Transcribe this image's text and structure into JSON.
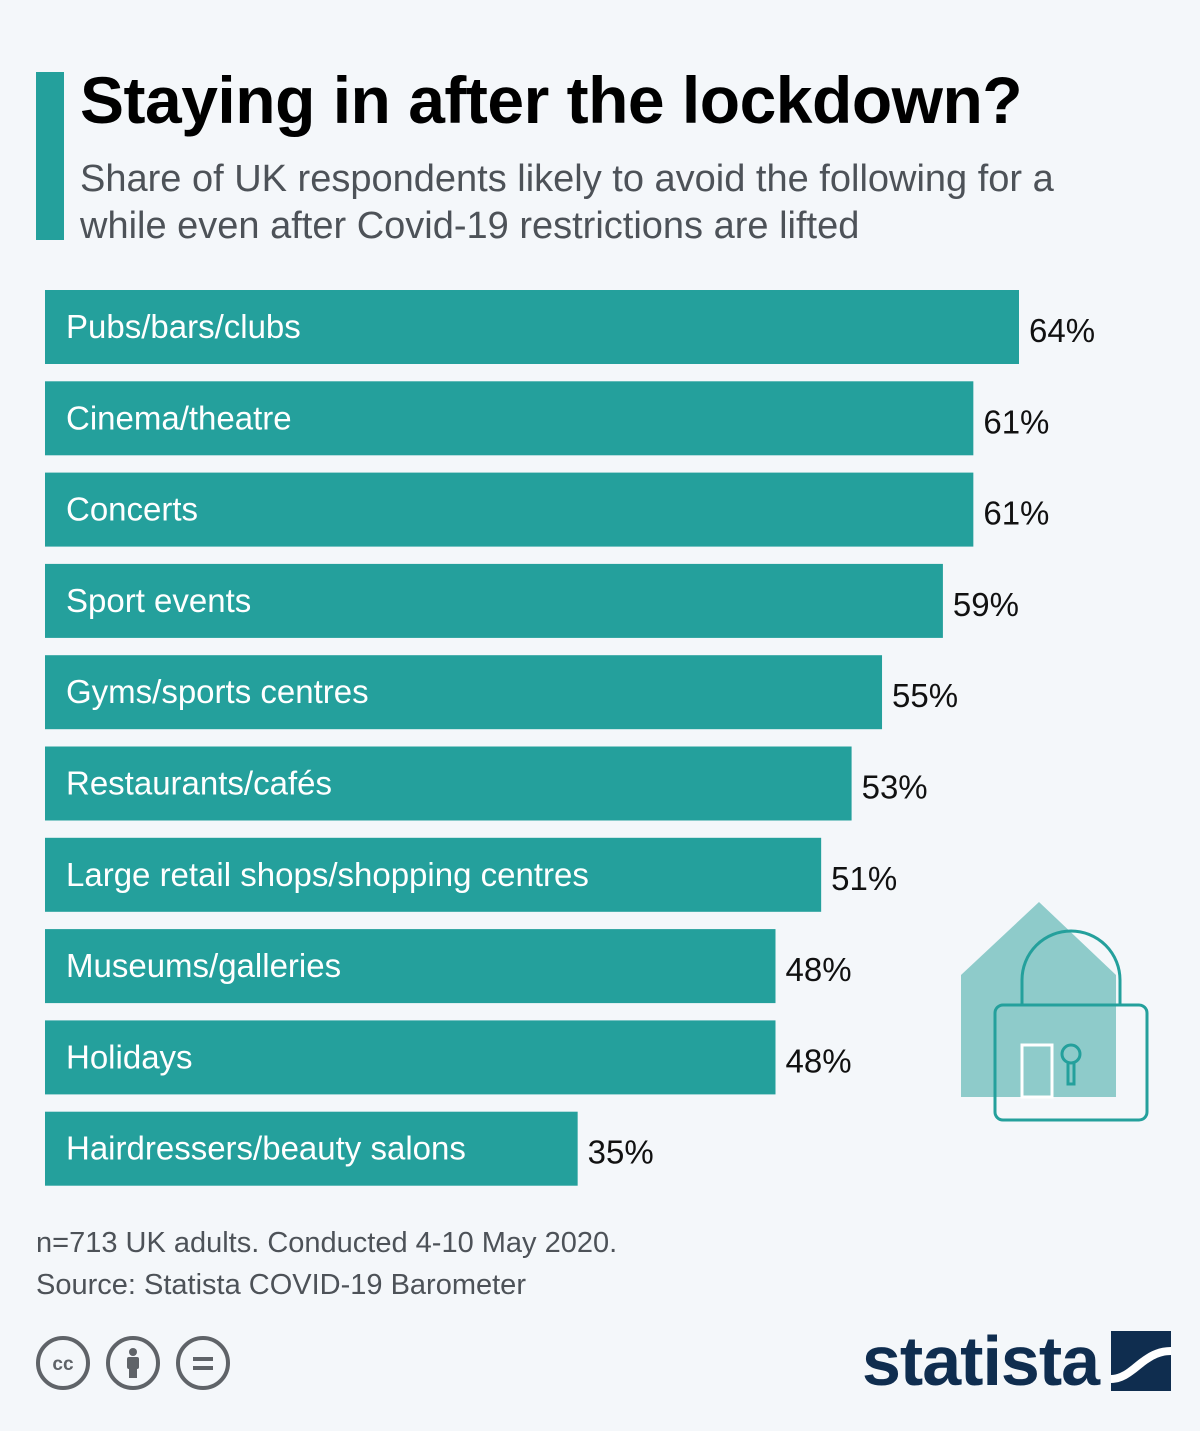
{
  "title": "Staying in after the lockdown?",
  "subtitle": "Share of UK respondents likely to avoid the following for a while even after Covid-19 restrictions are lifted",
  "colors": {
    "bar": "#24a09c",
    "accent": "#24a09c",
    "brand": "#0f2d4f",
    "background": "#f4f7fa"
  },
  "chart_data": {
    "type": "bar",
    "orientation": "horizontal",
    "categories": [
      "Pubs/bars/clubs",
      "Cinema/theatre",
      "Concerts",
      "Sport events",
      "Gyms/sports centres",
      "Restaurants/cafés",
      "Large retail shops/shopping centres",
      "Museums/galleries",
      "Holidays",
      "Hairdressers/beauty salons"
    ],
    "values": [
      64,
      61,
      61,
      59,
      55,
      53,
      51,
      48,
      48,
      35
    ],
    "value_labels": [
      "64%",
      "61%",
      "61%",
      "59%",
      "55%",
      "53%",
      "51%",
      "48%",
      "48%",
      "35%"
    ],
    "unit": "%",
    "grid": false
  },
  "footnote": {
    "sample": "n=713 UK adults. Conducted 4-10 May 2020.",
    "source": "Source: Statista COVID-19 Barometer"
  },
  "license_icons": [
    "creative-commons-icon",
    "attribution-icon",
    "no-derivatives-icon"
  ],
  "brand": {
    "name": "statista",
    "logo_icon": "statista-logo-icon"
  },
  "illustration_icon": "house-padlock-icon"
}
